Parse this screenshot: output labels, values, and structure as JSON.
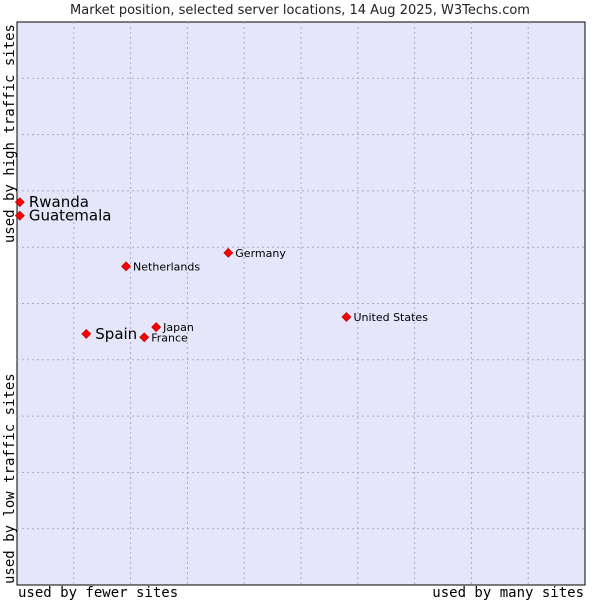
{
  "chart_data": {
    "type": "scatter",
    "title": "Market position, selected server locations, 14 Aug 2025, W3Techs.com",
    "xlabel_left": "used by fewer sites",
    "xlabel_right": "used by many sites",
    "ylabel_bottom": "used by low traffic sites",
    "ylabel_top": "used by high traffic sites",
    "xlim": [
      0,
      10
    ],
    "ylim": [
      0,
      10
    ],
    "grid": true,
    "colors": {
      "plot_bg": "#e6e6fa",
      "grid": "#a9a9c8",
      "point": "#ff0000"
    },
    "points": [
      {
        "label": "Rwanda",
        "x": 0.05,
        "y": 6.8,
        "emphasis": true
      },
      {
        "label": "Guatemala",
        "x": 0.05,
        "y": 6.56,
        "emphasis": true
      },
      {
        "label": "Germany",
        "x": 3.72,
        "y": 5.9,
        "emphasis": false
      },
      {
        "label": "Netherlands",
        "x": 1.92,
        "y": 5.66,
        "emphasis": false
      },
      {
        "label": "United States",
        "x": 5.8,
        "y": 4.76,
        "emphasis": false
      },
      {
        "label": "Japan",
        "x": 2.45,
        "y": 4.58,
        "emphasis": false
      },
      {
        "label": "Spain",
        "x": 1.22,
        "y": 4.46,
        "emphasis": true
      },
      {
        "label": "France",
        "x": 2.24,
        "y": 4.4,
        "emphasis": false
      }
    ]
  }
}
